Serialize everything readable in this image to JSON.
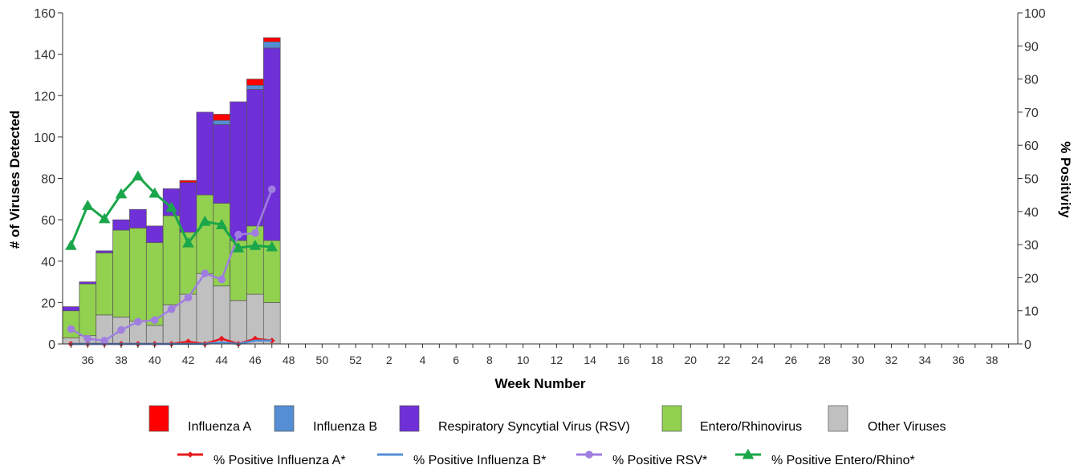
{
  "chart_data": {
    "type": "bar",
    "stacked": true,
    "x_title": "Week Number",
    "y_left_title": "# of Viruses Detected",
    "y_right_title": "% Positivity",
    "y_left_range": [
      0,
      160
    ],
    "y_left_ticks": [
      0,
      20,
      40,
      60,
      80,
      100,
      120,
      140,
      160
    ],
    "y_right_range": [
      0,
      100
    ],
    "y_right_ticks": [
      0,
      10,
      20,
      30,
      40,
      50,
      60,
      70,
      80,
      90,
      100
    ],
    "weeks": [
      "35",
      "36",
      "37",
      "38",
      "39",
      "40",
      "41",
      "42",
      "43",
      "44",
      "45",
      "46",
      "47",
      "48",
      "49",
      "50",
      "51",
      "52",
      "1",
      "2",
      "3",
      "4",
      "5",
      "6",
      "7",
      "8",
      "9",
      "10",
      "11",
      "12",
      "13",
      "14",
      "15",
      "16",
      "17",
      "18",
      "19",
      "20",
      "21",
      "22",
      "23",
      "24",
      "25",
      "26",
      "27",
      "28",
      "29",
      "30",
      "31",
      "32",
      "33",
      "34",
      "35",
      "36",
      "37",
      "38",
      "39"
    ],
    "x_tick_labels": [
      "36",
      "38",
      "40",
      "42",
      "44",
      "46",
      "48",
      "50",
      "52",
      "2",
      "4",
      "6",
      "8",
      "10",
      "12",
      "14",
      "16",
      "18",
      "20",
      "22",
      "24",
      "26",
      "28",
      "30",
      "32",
      "34",
      "36",
      "38"
    ],
    "grid": false,
    "legend_position": "bottom",
    "bar_series": [
      {
        "name": "Other Viruses",
        "color": "#c0c0c0",
        "values": [
          3,
          4,
          14,
          13,
          11,
          9,
          19,
          24,
          34,
          28,
          21,
          24,
          20
        ]
      },
      {
        "name": "Entero/Rhinovirus",
        "color": "#92d050",
        "values": [
          13,
          25,
          30,
          42,
          45,
          40,
          43,
          30,
          38,
          40,
          29,
          33,
          30
        ]
      },
      {
        "name": "Respiratory Syncytial Virus (RSV)",
        "color": "#7030d8",
        "values": [
          2,
          1,
          1,
          5,
          9,
          8,
          13,
          24,
          40,
          38,
          67,
          66,
          93
        ]
      },
      {
        "name": "Influenza B",
        "color": "#558ed5",
        "values": [
          0,
          0,
          0,
          0,
          0,
          0,
          0,
          0,
          0,
          2,
          0,
          2,
          3
        ]
      },
      {
        "name": "Influenza A",
        "color": "#ff0000",
        "values": [
          0,
          0,
          0,
          0,
          0,
          0,
          0,
          1,
          0,
          3,
          0,
          3,
          2
        ]
      }
    ],
    "line_series": [
      {
        "name": "% Positive Influenza A*",
        "color": "#e8191e",
        "marker": "diamond",
        "values": [
          0,
          0,
          0,
          0,
          0,
          0,
          0,
          0.7,
          0,
          1.6,
          0,
          1.6,
          1
        ]
      },
      {
        "name": "% Positive Influenza B*",
        "color": "#558ed5",
        "marker": "none",
        "values": [
          0,
          0,
          0,
          0,
          0,
          0,
          0,
          0,
          0,
          0.5,
          0,
          1.0,
          1.0
        ]
      },
      {
        "name": "% Positive RSV*",
        "color": "#a07ee0",
        "marker": "circle",
        "values": [
          4.5,
          1.6,
          1.0,
          4.2,
          6.7,
          7.2,
          10.5,
          14,
          21.3,
          19.5,
          33,
          33.5,
          46.7
        ]
      },
      {
        "name": "% Positive Entero/Rhino*",
        "color": "#1aa64a",
        "marker": "triangle",
        "values": [
          29.7,
          41.8,
          37.8,
          45.3,
          50.7,
          45.5,
          41.2,
          30.5,
          37,
          36,
          29,
          29.7,
          29.3
        ]
      }
    ],
    "legend_bars_order": [
      "Influenza A",
      "Influenza B",
      "Respiratory Syncytial Virus (RSV)",
      "Entero/Rhinovirus",
      "Other Viruses"
    ],
    "legend_lines_order": [
      "% Positive Influenza A*",
      "% Positive Influenza B*",
      "% Positive RSV*",
      "% Positive Entero/Rhino*"
    ]
  }
}
